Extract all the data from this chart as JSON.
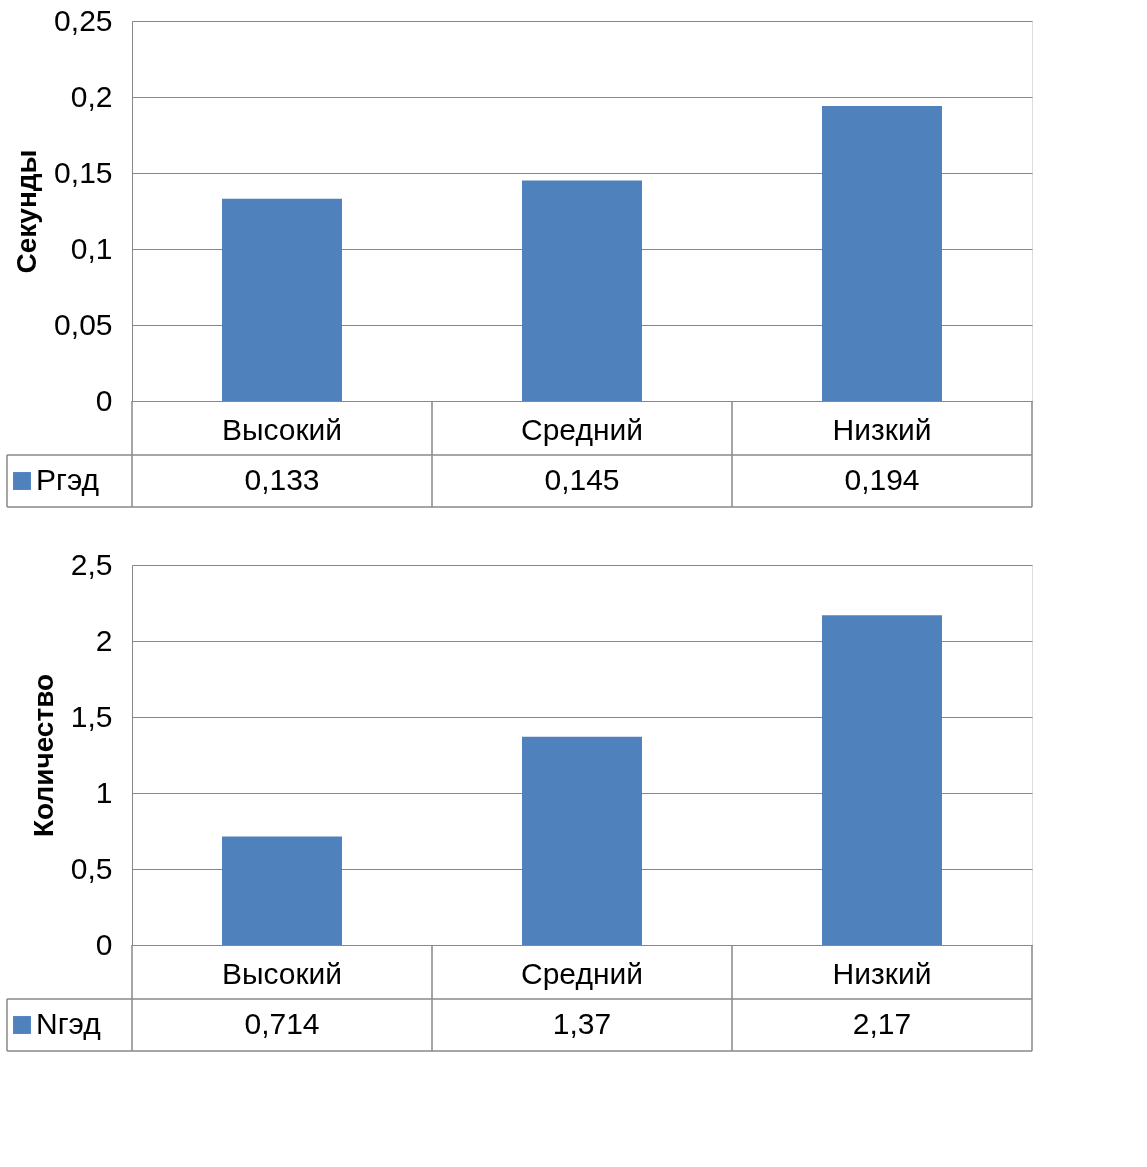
{
  "chart_data": [
    {
      "type": "bar",
      "ylabel": "Секунды",
      "categories": [
        "Высокий",
        "Средний",
        "Низкий"
      ],
      "series": [
        {
          "name": "Pгэд",
          "color": "#4f81bd",
          "values": [
            0.133,
            0.145,
            0.194
          ],
          "value_labels": [
            "0,133",
            "0,145",
            "0,194"
          ]
        }
      ],
      "ylim": [
        0,
        0.25
      ],
      "yticks": [
        0,
        {
          "value": 0.05,
          "label": "0,05"
        },
        {
          "value": 0.1,
          "label": "0,1"
        },
        {
          "value": 0.15,
          "label": "0,15"
        },
        {
          "value": 0.2,
          "label": "0,2"
        },
        {
          "value": 0.25,
          "label": "0,25"
        }
      ],
      "grid": "y",
      "legend": "bottom"
    },
    {
      "type": "bar",
      "ylabel": "Количество",
      "categories": [
        "Высокий",
        "Средний",
        "Низкий"
      ],
      "series": [
        {
          "name": "Nгэд",
          "color": "#4f81bd",
          "values": [
            0.714,
            1.37,
            2.17
          ],
          "value_labels": [
            "0,714",
            "1,37",
            "2,17"
          ]
        }
      ],
      "ylim": [
        0,
        2.5
      ],
      "yticks": [
        0,
        {
          "value": 0.5,
          "label": "0,5"
        },
        1,
        {
          "value": 1.5,
          "label": "1,5"
        },
        2,
        {
          "value": 2.5,
          "label": "2,5"
        }
      ],
      "grid": "y",
      "legend": "bottom"
    }
  ]
}
